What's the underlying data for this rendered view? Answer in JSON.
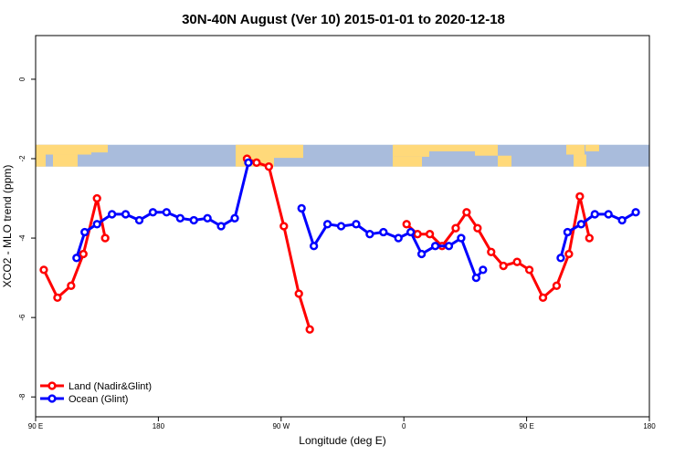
{
  "chart_data": {
    "type": "line",
    "title": "30N-40N August (Ver 10)   2015-01-01 to 2020-12-18",
    "xlabel": "Longitude (deg E)",
    "ylabel": "XCO2 - MLO trend (ppm)",
    "x_tick_labels": [
      "90 E",
      "180",
      "90 W",
      "0",
      "90 E",
      "180"
    ],
    "x_tick_values": [
      90,
      180,
      270,
      360,
      450,
      540
    ],
    "xlim": [
      90,
      540
    ],
    "y_tick_labels": [
      "-8",
      "-6",
      "-4",
      "-2",
      "0"
    ],
    "y_tick_values": [
      -8,
      -6,
      -4,
      -2,
      0
    ],
    "ylim": [
      -8.5,
      1.1
    ],
    "grid": false,
    "legend_position": "bottom-left",
    "map_strip": {
      "y_top": -1.65,
      "y_bottom": -2.2,
      "ocean_color": "#A9BCDC",
      "land_color": "#FFD97A"
    },
    "series": [
      {
        "name": "Land (Nadir&Glint)",
        "color": "#FF0000",
        "segments": [
          [
            [
              96,
              -4.8
            ],
            [
              106,
              -5.5
            ],
            [
              116,
              -5.2
            ],
            [
              125,
              -4.4
            ],
            [
              135,
              -3.0
            ],
            [
              141,
              -4.0
            ]
          ],
          [
            [
              245,
              -2.0
            ],
            [
              252,
              -2.1
            ],
            [
              261,
              -2.2
            ],
            [
              272,
              -3.7
            ],
            [
              283,
              -5.4
            ],
            [
              291,
              -6.3
            ]
          ],
          [
            [
              362,
              -3.65
            ],
            [
              370,
              -3.9
            ],
            [
              379,
              -3.9
            ],
            [
              388,
              -4.2
            ],
            [
              398,
              -3.75
            ],
            [
              406,
              -3.35
            ],
            [
              414,
              -3.75
            ],
            [
              424,
              -4.35
            ],
            [
              433,
              -4.7
            ],
            [
              443,
              -4.6
            ],
            [
              452,
              -4.8
            ],
            [
              462,
              -5.5
            ],
            [
              472,
              -5.2
            ],
            [
              481,
              -4.4
            ],
            [
              489,
              -2.95
            ],
            [
              496,
              -4.0
            ]
          ]
        ]
      },
      {
        "name": "Ocean (Glint)",
        "color": "#0000FF",
        "segments": [
          [
            [
              120,
              -4.5
            ],
            [
              126,
              -3.85
            ],
            [
              135,
              -3.65
            ],
            [
              146,
              -3.4
            ],
            [
              156,
              -3.4
            ],
            [
              166,
              -3.55
            ],
            [
              176,
              -3.35
            ],
            [
              186,
              -3.35
            ],
            [
              196,
              -3.5
            ],
            [
              206,
              -3.55
            ],
            [
              216,
              -3.5
            ],
            [
              226,
              -3.7
            ],
            [
              236,
              -3.5
            ],
            [
              246,
              -2.1
            ]
          ],
          [
            [
              285,
              -3.25
            ],
            [
              294,
              -4.2
            ],
            [
              304,
              -3.65
            ],
            [
              314,
              -3.7
            ],
            [
              325,
              -3.65
            ],
            [
              335,
              -3.9
            ],
            [
              345,
              -3.85
            ],
            [
              356,
              -4.0
            ],
            [
              365,
              -3.85
            ],
            [
              373,
              -4.4
            ],
            [
              383,
              -4.2
            ],
            [
              393,
              -4.2
            ],
            [
              402,
              -4.0
            ],
            [
              413,
              -5.0
            ],
            [
              418,
              -4.8
            ]
          ],
          [
            [
              475,
              -4.5
            ],
            [
              480,
              -3.85
            ],
            [
              490,
              -3.65
            ],
            [
              500,
              -3.4
            ],
            [
              510,
              -3.4
            ],
            [
              520,
              -3.55
            ],
            [
              530,
              -3.35
            ]
          ]
        ]
      }
    ]
  }
}
